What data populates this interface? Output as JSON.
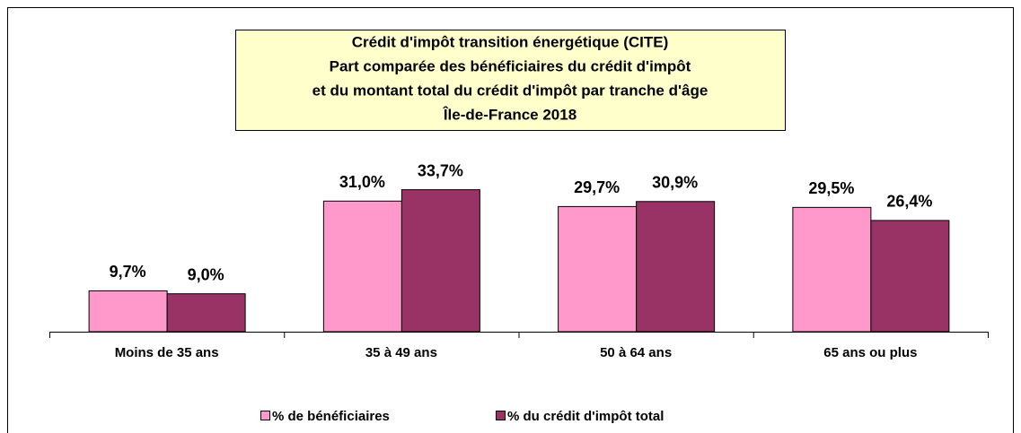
{
  "chart_data": {
    "type": "bar",
    "title": [
      "Crédit d'impôt transition énergétique (CITE)",
      "Part comparée des bénéficiaires du crédit d'impôt",
      "et du montant total du crédit d'impôt par tranche d'âge",
      "Île-de-France 2018"
    ],
    "categories": [
      "Moins de 35 ans",
      "35 à 49 ans",
      "50 à 64 ans",
      "65 ans ou plus"
    ],
    "series": [
      {
        "name": "% de bénéficiaires",
        "color": "#ff99cc",
        "values": [
          9.7,
          31.0,
          29.7,
          29.5
        ],
        "value_labels": [
          "9,7%",
          "31,0%",
          "29,7%",
          "29,5%"
        ]
      },
      {
        "name": "% du crédit d'impôt total",
        "color": "#993366",
        "values": [
          9.0,
          33.7,
          30.9,
          26.4
        ],
        "value_labels": [
          "9,0%",
          "33,7%",
          "30,9%",
          "26,4%"
        ]
      }
    ],
    "legend": "bottom"
  }
}
